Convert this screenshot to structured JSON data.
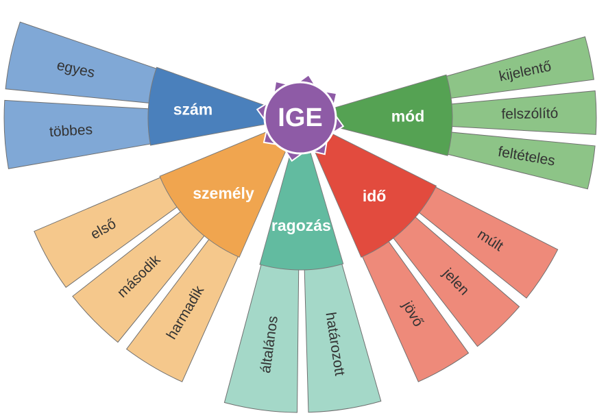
{
  "center": {
    "label": "IGE",
    "color": "#8E5BA6"
  },
  "categories": [
    {
      "id": "szam",
      "label": "szám",
      "inner_color": "#4A80BC",
      "outer_color": "#80A8D6",
      "children": [
        "egyes",
        "többes"
      ]
    },
    {
      "id": "szemely",
      "label": "személy",
      "inner_color": "#F0A54F",
      "outer_color": "#F5C88C",
      "children": [
        "első",
        "második",
        "harmadik"
      ]
    },
    {
      "id": "ragozas",
      "label": "ragozás",
      "inner_color": "#62BBA0",
      "outer_color": "#A4D8C8",
      "children": [
        "általános",
        "határozott"
      ]
    },
    {
      "id": "ido",
      "label": "idő",
      "inner_color": "#E24B3E",
      "outer_color": "#EE8A7A",
      "children": [
        "múlt",
        "jelen",
        "jövő"
      ]
    },
    {
      "id": "mod",
      "label": "mód",
      "inner_color": "#55A253",
      "outer_color": "#8DC487",
      "children": [
        "kijelentő",
        "felszólító",
        "feltételes"
      ]
    }
  ]
}
